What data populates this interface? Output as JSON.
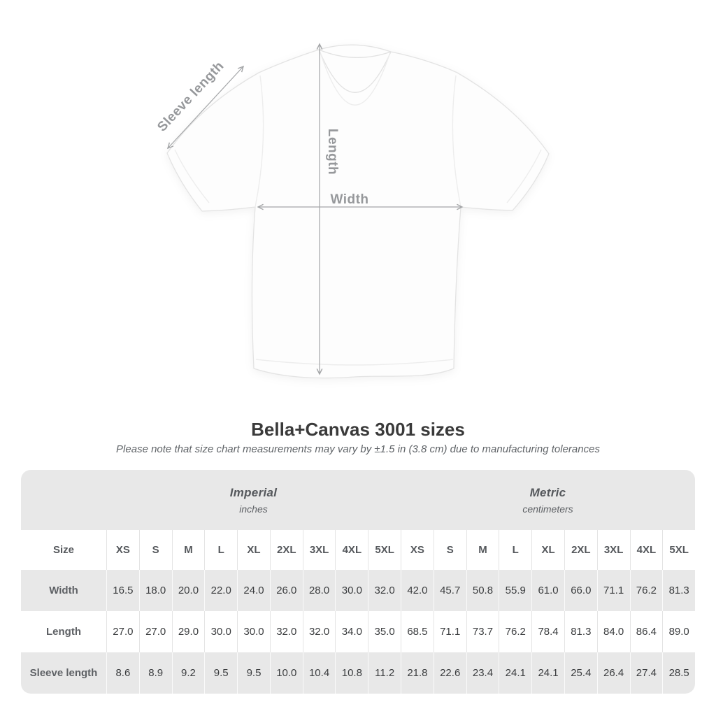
{
  "diagram": {
    "labels": {
      "sleeve_length": "Sleeve length",
      "length": "Length",
      "width": "Width"
    },
    "line_color": "#a4a6a8",
    "label_color": "#96989b"
  },
  "header": {
    "title": "Bella+Canvas 3001 sizes",
    "note": "Please note that size chart measurements may vary by ±1.5 in (3.8 cm) due to manufacturing tolerances"
  },
  "table": {
    "colors": {
      "band_bg": "#e8e8e8",
      "alt_row_bg": "#e8e8e8",
      "white_row_bg": "#ffffff",
      "header_text": "#55585c",
      "label_text": "#5e6165",
      "value_text": "#3b3d3f"
    },
    "size_header": "Size",
    "unit_groups": [
      {
        "id": "imperial",
        "label": "Imperial",
        "sublabel": "inches"
      },
      {
        "id": "metric",
        "label": "Metric",
        "sublabel": "centimeters"
      }
    ],
    "sizes": [
      "XS",
      "S",
      "M",
      "L",
      "XL",
      "2XL",
      "3XL",
      "4XL",
      "5XL"
    ],
    "rows": [
      {
        "label": "Width",
        "imperial": [
          "16.5",
          "18.0",
          "20.0",
          "22.0",
          "24.0",
          "26.0",
          "28.0",
          "30.0",
          "32.0"
        ],
        "metric": [
          "42.0",
          "45.7",
          "50.8",
          "55.9",
          "61.0",
          "66.0",
          "71.1",
          "76.2",
          "81.3"
        ]
      },
      {
        "label": "Length",
        "imperial": [
          "27.0",
          "27.0",
          "29.0",
          "30.0",
          "30.0",
          "32.0",
          "32.0",
          "34.0",
          "35.0"
        ],
        "metric": [
          "68.5",
          "71.1",
          "73.7",
          "76.2",
          "78.4",
          "81.3",
          "84.0",
          "86.4",
          "89.0"
        ]
      },
      {
        "label": "Sleeve length",
        "imperial": [
          "8.6",
          "8.9",
          "9.2",
          "9.5",
          "9.5",
          "10.0",
          "10.4",
          "10.8",
          "11.2"
        ],
        "metric": [
          "21.8",
          "22.6",
          "23.4",
          "24.1",
          "24.1",
          "25.4",
          "26.4",
          "27.4",
          "28.5"
        ]
      }
    ]
  },
  "chart_data": {
    "type": "table",
    "title": "Bella+Canvas 3001 sizes",
    "subtitle": "Please note that size chart measurements may vary by ±1.5 in (3.8 cm) due to manufacturing tolerances",
    "column_groups": [
      {
        "name": "Imperial",
        "unit": "inches"
      },
      {
        "name": "Metric",
        "unit": "centimeters"
      }
    ],
    "columns": [
      "XS",
      "S",
      "M",
      "L",
      "XL",
      "2XL",
      "3XL",
      "4XL",
      "5XL"
    ],
    "rows": [
      {
        "measurement": "Width",
        "imperial_in": [
          16.5,
          18.0,
          20.0,
          22.0,
          24.0,
          26.0,
          28.0,
          30.0,
          32.0
        ],
        "metric_cm": [
          42.0,
          45.7,
          50.8,
          55.9,
          61.0,
          66.0,
          71.1,
          76.2,
          81.3
        ]
      },
      {
        "measurement": "Length",
        "imperial_in": [
          27.0,
          27.0,
          29.0,
          30.0,
          30.0,
          32.0,
          32.0,
          34.0,
          35.0
        ],
        "metric_cm": [
          68.5,
          71.1,
          73.7,
          76.2,
          78.4,
          81.3,
          84.0,
          86.4,
          89.0
        ]
      },
      {
        "measurement": "Sleeve length",
        "imperial_in": [
          8.6,
          8.9,
          9.2,
          9.5,
          9.5,
          10.0,
          10.4,
          10.8,
          11.2
        ],
        "metric_cm": [
          21.8,
          22.6,
          23.4,
          24.1,
          24.1,
          25.4,
          26.4,
          27.4,
          28.5
        ]
      }
    ],
    "diagram_annotations": [
      "Sleeve length",
      "Length",
      "Width"
    ]
  }
}
